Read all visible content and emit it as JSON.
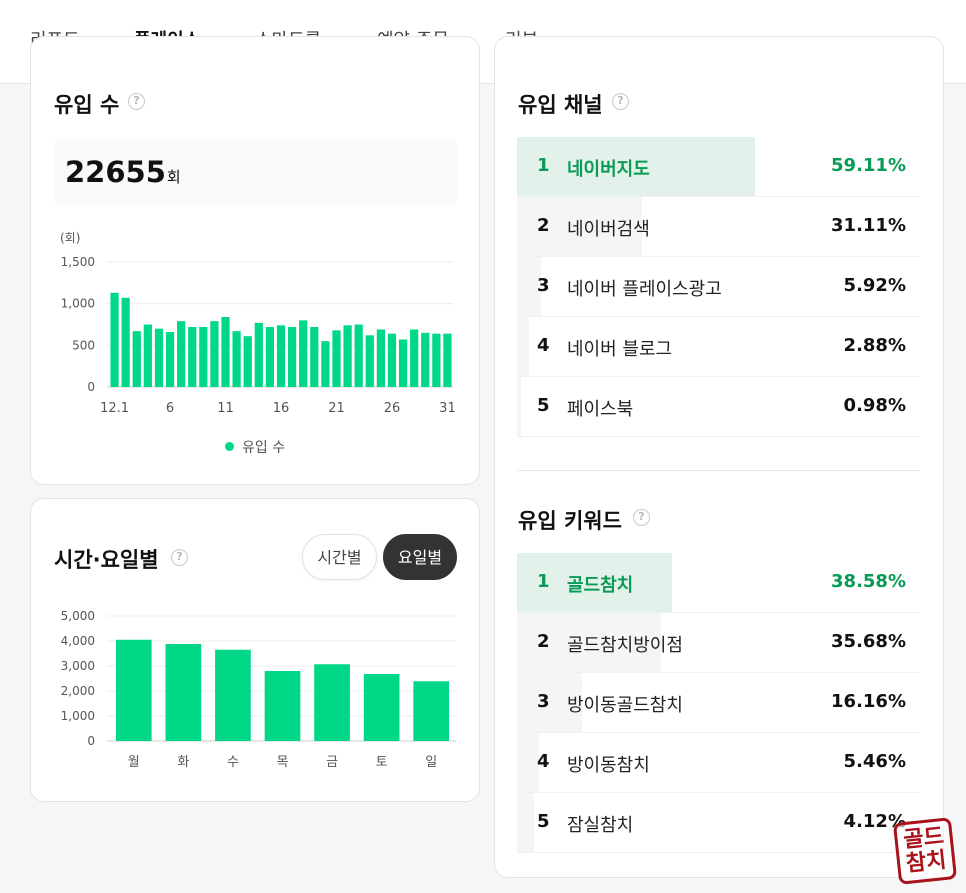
{
  "nav": {
    "tabs": [
      {
        "label": "리포트"
      },
      {
        "label": "플레이스"
      },
      {
        "label": "스마트콜"
      },
      {
        "label": "예약·주문"
      },
      {
        "label": "리뷰"
      }
    ],
    "active": "플레이스"
  },
  "inflow_count": {
    "title": "유입 수",
    "total": "22655",
    "unit": "회",
    "legend": "유입 수",
    "chart_data": {
      "type": "bar",
      "y_unit_label": "(회)",
      "ylim": [
        0,
        1500
      ],
      "y_ticks": [
        "0",
        "500",
        "1,000",
        "1,500"
      ],
      "x_tick_labels": [
        {
          "day": 1,
          "label": "12.1"
        },
        {
          "day": 6,
          "label": "6"
        },
        {
          "day": 11,
          "label": "11"
        },
        {
          "day": 16,
          "label": "16"
        },
        {
          "day": 21,
          "label": "21"
        },
        {
          "day": 26,
          "label": "26"
        },
        {
          "day": 31,
          "label": "31"
        }
      ],
      "x": [
        1,
        2,
        3,
        4,
        5,
        6,
        7,
        8,
        9,
        10,
        11,
        12,
        13,
        14,
        15,
        16,
        17,
        18,
        19,
        20,
        21,
        22,
        23,
        24,
        25,
        26,
        27,
        28,
        29,
        30,
        31
      ],
      "values": [
        1130,
        1070,
        670,
        750,
        700,
        660,
        790,
        720,
        720,
        790,
        840,
        670,
        610,
        770,
        720,
        740,
        720,
        800,
        720,
        550,
        680,
        740,
        750,
        620,
        690,
        640,
        570,
        690,
        650,
        640,
        640
      ],
      "color": "#00d887",
      "series": [
        {
          "name": "유입 수"
        }
      ],
      "grid": true,
      "legend_position": "bottom"
    }
  },
  "time_weekday": {
    "title": "시간·요일별",
    "toggle": {
      "hour_label": "시간별",
      "weekday_label": "요일별",
      "selected": "요일별"
    },
    "chart_data": {
      "type": "bar",
      "categories": [
        "월",
        "화",
        "수",
        "목",
        "금",
        "토",
        "일"
      ],
      "values": [
        4050,
        3880,
        3650,
        2800,
        3070,
        2680,
        2390
      ],
      "ylim": [
        0,
        5000
      ],
      "y_ticks": [
        "0",
        "1,000",
        "2,000",
        "3,000",
        "4,000",
        "5,000"
      ],
      "color": "#00d887",
      "grid": true
    }
  },
  "inflow_channel": {
    "title": "유입 채널",
    "items": [
      {
        "rank": "1",
        "label": "네이버지도",
        "pct": "59.11%",
        "value": 59.11
      },
      {
        "rank": "2",
        "label": "네이버검색",
        "pct": "31.11%",
        "value": 31.11
      },
      {
        "rank": "3",
        "label": "네이버 플레이스광고",
        "pct": "5.92%",
        "value": 5.92
      },
      {
        "rank": "4",
        "label": "네이버 블로그",
        "pct": "2.88%",
        "value": 2.88
      },
      {
        "rank": "5",
        "label": "페이스북",
        "pct": "0.98%",
        "value": 0.98
      }
    ]
  },
  "inflow_keyword": {
    "title": "유입 키워드",
    "items": [
      {
        "rank": "1",
        "label": "골드참치",
        "pct": "38.58%",
        "value": 38.58
      },
      {
        "rank": "2",
        "label": "골드참치방이점",
        "pct": "35.68%",
        "value": 35.68
      },
      {
        "rank": "3",
        "label": "방이동골드참치",
        "pct": "16.16%",
        "value": 16.16
      },
      {
        "rank": "4",
        "label": "방이동참치",
        "pct": "5.46%",
        "value": 5.46
      },
      {
        "rank": "5",
        "label": "잠실참치",
        "pct": "4.12%",
        "value": 4.12
      }
    ]
  },
  "watermark": {
    "text": "골드참치"
  }
}
